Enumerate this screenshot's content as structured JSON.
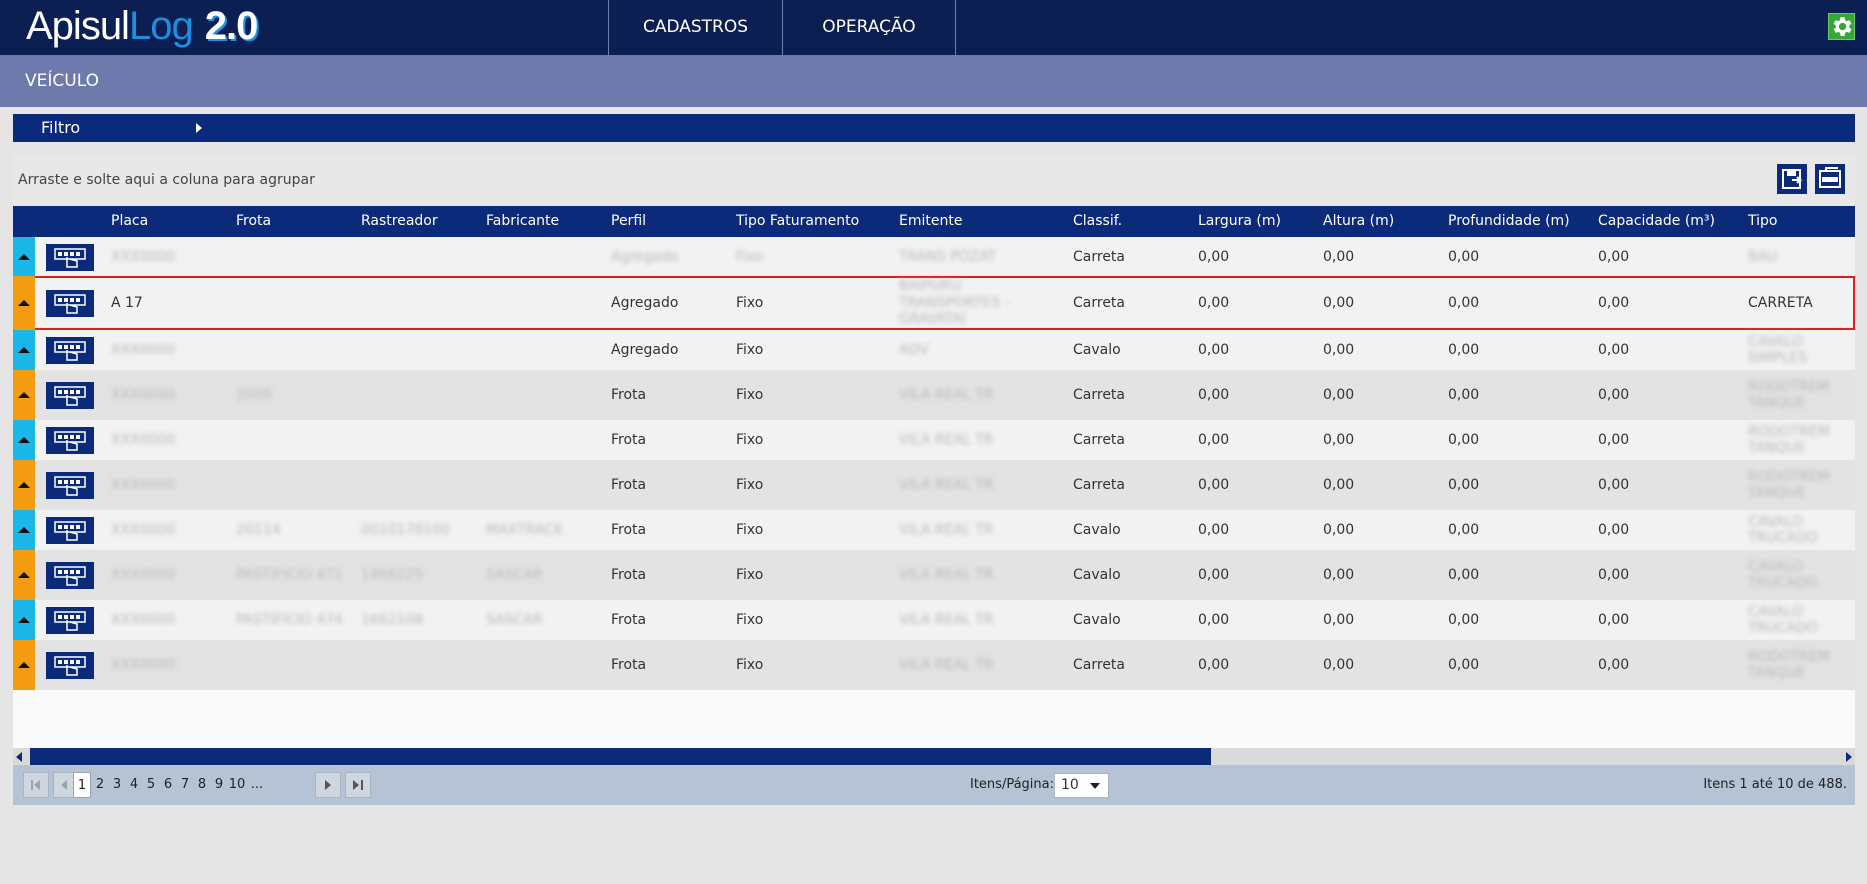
{
  "app": {
    "logo_part1": "Apisul",
    "logo_part2": "Log",
    "logo_version": "2.0",
    "nav": [
      "CADASTROS",
      "OPERAÇÃO"
    ],
    "settings_icon": "gear-icon"
  },
  "page": {
    "title": "VEÍCULO"
  },
  "filter": {
    "label": "Filtro"
  },
  "group_panel": {
    "hint": "Arraste e solte aqui a coluna para agrupar"
  },
  "toolbar": {
    "save_icon": "save-icon",
    "excel_icon": "excel-export-icon"
  },
  "grid": {
    "columns": [
      "Placa",
      "Frota",
      "Rastreador",
      "Fabricante",
      "Perfil",
      "Tipo Faturamento",
      "Emitente",
      "Classif.",
      "Largura (m)",
      "Altura (m)",
      "Profundidade (m)",
      "Capacidade (m³)",
      "Tipo"
    ],
    "rows": [
      {
        "placa": "XXX0000",
        "frota": "",
        "rastreador": "",
        "fabricante": "",
        "perfil": "Agregado",
        "fat": "Fixo",
        "emitente": [
          "TRANS POZAT"
        ],
        "classif": "Carreta",
        "largura": "0,00",
        "altura": "0,00",
        "prof": "0,00",
        "cap": "0,00",
        "tipo": [
          "BAU"
        ],
        "blurred": true
      },
      {
        "placa": "A     17",
        "frota": "",
        "rastreador": "",
        "fabricante": "",
        "perfil": "Agregado",
        "fat": "Fixo",
        "emitente": [
          "BAIPURU",
          "TRANSPORTES -",
          "GRAVATAI"
        ],
        "classif": "Carreta",
        "largura": "0,00",
        "altura": "0,00",
        "prof": "0,00",
        "cap": "0,00",
        "tipo": [
          "CARRETA"
        ],
        "selected": true
      },
      {
        "placa": "XXX0000",
        "frota": "",
        "rastreador": "",
        "fabricante": "",
        "perfil": "Agregado",
        "fat": "Fixo",
        "emitente": [
          "ADV"
        ],
        "classif": "Cavalo",
        "largura": "0,00",
        "altura": "0,00",
        "prof": "0,00",
        "cap": "0,00",
        "tipo": [
          "CAVALO",
          "SIMPLES"
        ]
      },
      {
        "placa": "XXX0000",
        "frota": "2009",
        "rastreador": "",
        "fabricante": "",
        "perfil": "Frota",
        "fat": "Fixo",
        "emitente": [
          "VILA REAL TR"
        ],
        "classif": "Carreta",
        "largura": "0,00",
        "altura": "0,00",
        "prof": "0,00",
        "cap": "0,00",
        "tipo": [
          "RODOTREM",
          "TANQUE"
        ]
      },
      {
        "placa": "XXX0000",
        "frota": "",
        "rastreador": "",
        "fabricante": "",
        "perfil": "Frota",
        "fat": "Fixo",
        "emitente": [
          "VILA REAL TR"
        ],
        "classif": "Carreta",
        "largura": "0,00",
        "altura": "0,00",
        "prof": "0,00",
        "cap": "0,00",
        "tipo": [
          "RODOTREM",
          "TANQUE"
        ]
      },
      {
        "placa": "XXX0000",
        "frota": "",
        "rastreador": "",
        "fabricante": "",
        "perfil": "Frota",
        "fat": "Fixo",
        "emitente": [
          "VILA REAL TR"
        ],
        "classif": "Carreta",
        "largura": "0,00",
        "altura": "0,00",
        "prof": "0,00",
        "cap": "0,00",
        "tipo": [
          "RODOTREM",
          "TANQUE"
        ]
      },
      {
        "placa": "XXX0000",
        "frota": "20114",
        "rastreador": "0010178100",
        "fabricante": "MAXTRACK",
        "perfil": "Frota",
        "fat": "Fixo",
        "emitente": [
          "VILA REAL TR"
        ],
        "classif": "Cavalo",
        "largura": "0,00",
        "altura": "0,00",
        "prof": "0,00",
        "cap": "0,00",
        "tipo": [
          "CAVALO",
          "TRUCADO"
        ]
      },
      {
        "placa": "XXX0000",
        "frota": "PASTIFICIO 471",
        "rastreador": "1466225",
        "fabricante": "SASCAR",
        "perfil": "Frota",
        "fat": "Fixo",
        "emitente": [
          "VILA REAL TR"
        ],
        "classif": "Cavalo",
        "largura": "0,00",
        "altura": "0,00",
        "prof": "0,00",
        "cap": "0,00",
        "tipo": [
          "CAVALO",
          "TRUCADO"
        ]
      },
      {
        "placa": "XXX0000",
        "frota": "PASTIFICIO 474",
        "rastreador": "1662108",
        "fabricante": "SASCAR",
        "perfil": "Frota",
        "fat": "Fixo",
        "emitente": [
          "VILA REAL TR"
        ],
        "classif": "Cavalo",
        "largura": "0,00",
        "altura": "0,00",
        "prof": "0,00",
        "cap": "0,00",
        "tipo": [
          "CAVALO",
          "TRUCADO"
        ]
      },
      {
        "placa": "XXX0000",
        "frota": "",
        "rastreador": "",
        "fabricante": "",
        "perfil": "Frota",
        "fat": "Fixo",
        "emitente": [
          "VILA REAL TR"
        ],
        "classif": "Carreta",
        "largura": "0,00",
        "altura": "0,00",
        "prof": "0,00",
        "cap": "0,00",
        "tipo": [
          "RODOTREM",
          "TANQUE"
        ]
      }
    ]
  },
  "pager": {
    "pages": [
      "1",
      "2",
      "3",
      "4",
      "5",
      "6",
      "7",
      "8",
      "9",
      "10",
      "..."
    ],
    "current": "1",
    "items_per_page_label": "Itens/Página:",
    "items_per_page": "10",
    "info": "Itens 1 até 10 de 488."
  },
  "colors": {
    "navy": "#0b1f52",
    "grid_header": "#0b2a7a",
    "title_band": "#6d7aab",
    "row_blue": "#1bb7e8",
    "row_orange": "#f39c12",
    "selection": "#e41d1d",
    "gear_green": "#35a637"
  }
}
